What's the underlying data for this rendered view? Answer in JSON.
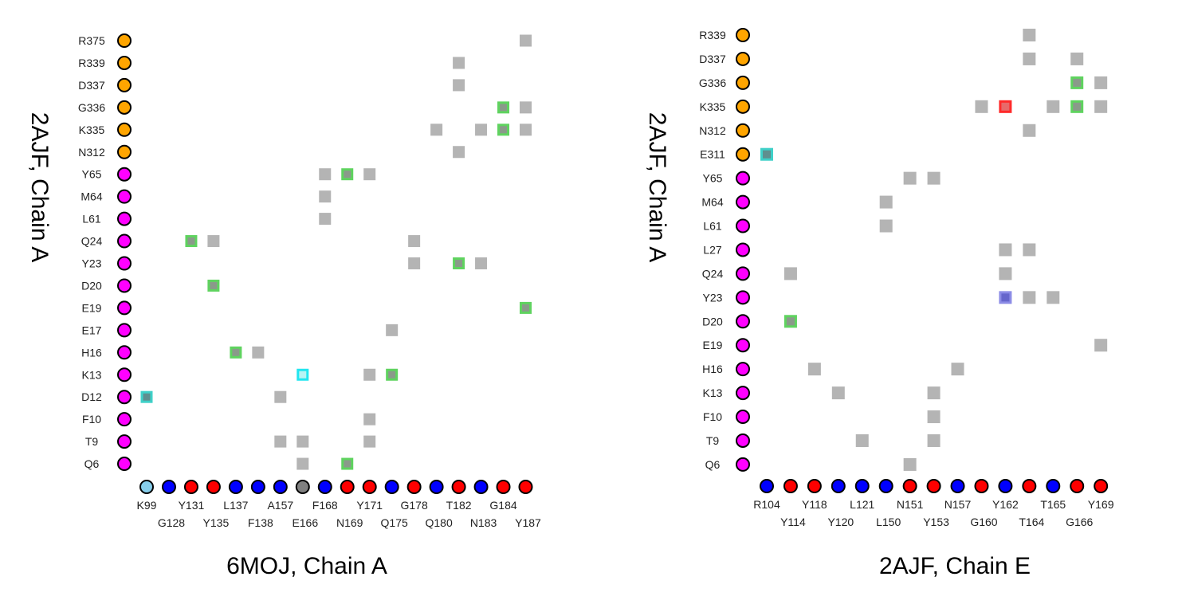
{
  "chart_data": [
    {
      "type": "heatmap",
      "title": "6MOJ, Chain A",
      "ylabel": "2AJF, Chain A",
      "x_residues": [
        {
          "label": "K99",
          "color": "#87ceeb"
        },
        {
          "label": "G128",
          "color": "#0000ff"
        },
        {
          "label": "Y131",
          "color": "#ff0000"
        },
        {
          "label": "Y135",
          "color": "#ff0000"
        },
        {
          "label": "L137",
          "color": "#0000ff"
        },
        {
          "label": "F138",
          "color": "#0000ff"
        },
        {
          "label": "A157",
          "color": "#0000ff"
        },
        {
          "label": "E166",
          "color": "#808080"
        },
        {
          "label": "F168",
          "color": "#0000ff"
        },
        {
          "label": "N169",
          "color": "#ff0000"
        },
        {
          "label": "Y171",
          "color": "#ff0000"
        },
        {
          "label": "Q175",
          "color": "#0000ff"
        },
        {
          "label": "G178",
          "color": "#ff0000"
        },
        {
          "label": "Q180",
          "color": "#0000ff"
        },
        {
          "label": "T182",
          "color": "#ff0000"
        },
        {
          "label": "N183",
          "color": "#0000ff"
        },
        {
          "label": "G184",
          "color": "#ff0000"
        },
        {
          "label": "Y187",
          "color": "#ff0000"
        }
      ],
      "y_residues": [
        {
          "label": "R375",
          "color": "#ffa500"
        },
        {
          "label": "R339",
          "color": "#ffa500"
        },
        {
          "label": "D337",
          "color": "#ffa500"
        },
        {
          "label": "G336",
          "color": "#ffa500"
        },
        {
          "label": "K335",
          "color": "#ffa500"
        },
        {
          "label": "N312",
          "color": "#ffa500"
        },
        {
          "label": "Y65",
          "color": "#ff00ff"
        },
        {
          "label": "M64",
          "color": "#ff00ff"
        },
        {
          "label": "L61",
          "color": "#ff00ff"
        },
        {
          "label": "Q24",
          "color": "#ff00ff"
        },
        {
          "label": "Y23",
          "color": "#ff00ff"
        },
        {
          "label": "D20",
          "color": "#ff00ff"
        },
        {
          "label": "E19",
          "color": "#ff00ff"
        },
        {
          "label": "E17",
          "color": "#ff00ff"
        },
        {
          "label": "H16",
          "color": "#ff00ff"
        },
        {
          "label": "K13",
          "color": "#ff00ff"
        },
        {
          "label": "D12",
          "color": "#ff00ff"
        },
        {
          "label": "F10",
          "color": "#ff00ff"
        },
        {
          "label": "T9",
          "color": "#ff00ff"
        },
        {
          "label": "Q6",
          "color": "#ff00ff"
        }
      ],
      "cells": [
        {
          "x": "Y187",
          "y": "R375",
          "type": "gray"
        },
        {
          "x": "T182",
          "y": "R339",
          "type": "gray"
        },
        {
          "x": "T182",
          "y": "D337",
          "type": "gray"
        },
        {
          "x": "G184",
          "y": "G336",
          "type": "green"
        },
        {
          "x": "Y187",
          "y": "G336",
          "type": "gray"
        },
        {
          "x": "Q180",
          "y": "K335",
          "type": "gray"
        },
        {
          "x": "N183",
          "y": "K335",
          "type": "gray"
        },
        {
          "x": "G184",
          "y": "K335",
          "type": "green"
        },
        {
          "x": "Y187",
          "y": "K335",
          "type": "gray"
        },
        {
          "x": "T182",
          "y": "N312",
          "type": "gray"
        },
        {
          "x": "F168",
          "y": "Y65",
          "type": "gray"
        },
        {
          "x": "N169",
          "y": "Y65",
          "type": "green"
        },
        {
          "x": "Y171",
          "y": "Y65",
          "type": "gray"
        },
        {
          "x": "F168",
          "y": "M64",
          "type": "gray"
        },
        {
          "x": "F168",
          "y": "L61",
          "type": "gray"
        },
        {
          "x": "Y131",
          "y": "Q24",
          "type": "green"
        },
        {
          "x": "Y135",
          "y": "Q24",
          "type": "gray"
        },
        {
          "x": "G178",
          "y": "Q24",
          "type": "gray"
        },
        {
          "x": "G178",
          "y": "Y23",
          "type": "gray"
        },
        {
          "x": "T182",
          "y": "Y23",
          "type": "green"
        },
        {
          "x": "N183",
          "y": "Y23",
          "type": "gray"
        },
        {
          "x": "Y135",
          "y": "D20",
          "type": "green"
        },
        {
          "x": "Y187",
          "y": "E19",
          "type": "green"
        },
        {
          "x": "Q175",
          "y": "E17",
          "type": "gray"
        },
        {
          "x": "L137",
          "y": "H16",
          "type": "green"
        },
        {
          "x": "F138",
          "y": "H16",
          "type": "gray"
        },
        {
          "x": "E166",
          "y": "K13",
          "type": "cyan"
        },
        {
          "x": "Y171",
          "y": "K13",
          "type": "gray"
        },
        {
          "x": "Q175",
          "y": "K13",
          "type": "green"
        },
        {
          "x": "K99",
          "y": "D12",
          "type": "teal"
        },
        {
          "x": "A157",
          "y": "D12",
          "type": "gray"
        },
        {
          "x": "Y171",
          "y": "F10",
          "type": "gray"
        },
        {
          "x": "A157",
          "y": "T9",
          "type": "gray"
        },
        {
          "x": "E166",
          "y": "T9",
          "type": "gray"
        },
        {
          "x": "Y171",
          "y": "T9",
          "type": "gray"
        },
        {
          "x": "E166",
          "y": "Q6",
          "type": "gray"
        },
        {
          "x": "N169",
          "y": "Q6",
          "type": "green"
        }
      ]
    },
    {
      "type": "heatmap",
      "title": "2AJF, Chain E",
      "ylabel": "2AJF, Chain A",
      "x_residues": [
        {
          "label": "R104",
          "color": "#0000ff"
        },
        {
          "label": "Y114",
          "color": "#ff0000"
        },
        {
          "label": "Y118",
          "color": "#ff0000"
        },
        {
          "label": "Y120",
          "color": "#0000ff"
        },
        {
          "label": "L121",
          "color": "#0000ff"
        },
        {
          "label": "L150",
          "color": "#0000ff"
        },
        {
          "label": "N151",
          "color": "#ff0000"
        },
        {
          "label": "Y153",
          "color": "#ff0000"
        },
        {
          "label": "N157",
          "color": "#0000ff"
        },
        {
          "label": "G160",
          "color": "#ff0000"
        },
        {
          "label": "Y162",
          "color": "#0000ff"
        },
        {
          "label": "T164",
          "color": "#ff0000"
        },
        {
          "label": "T165",
          "color": "#0000ff"
        },
        {
          "label": "G166",
          "color": "#ff0000"
        },
        {
          "label": "Y169",
          "color": "#ff0000"
        }
      ],
      "y_residues": [
        {
          "label": "R339",
          "color": "#ffa500"
        },
        {
          "label": "D337",
          "color": "#ffa500"
        },
        {
          "label": "G336",
          "color": "#ffa500"
        },
        {
          "label": "K335",
          "color": "#ffa500"
        },
        {
          "label": "N312",
          "color": "#ffa500"
        },
        {
          "label": "E311",
          "color": "#ffa500"
        },
        {
          "label": "Y65",
          "color": "#ff00ff"
        },
        {
          "label": "M64",
          "color": "#ff00ff"
        },
        {
          "label": "L61",
          "color": "#ff00ff"
        },
        {
          "label": "L27",
          "color": "#ff00ff"
        },
        {
          "label": "Q24",
          "color": "#ff00ff"
        },
        {
          "label": "Y23",
          "color": "#ff00ff"
        },
        {
          "label": "D20",
          "color": "#ff00ff"
        },
        {
          "label": "E19",
          "color": "#ff00ff"
        },
        {
          "label": "H16",
          "color": "#ff00ff"
        },
        {
          "label": "K13",
          "color": "#ff00ff"
        },
        {
          "label": "F10",
          "color": "#ff00ff"
        },
        {
          "label": "T9",
          "color": "#ff00ff"
        },
        {
          "label": "Q6",
          "color": "#ff00ff"
        }
      ],
      "cells": [
        {
          "x": "T164",
          "y": "R339",
          "type": "gray"
        },
        {
          "x": "T164",
          "y": "D337",
          "type": "gray"
        },
        {
          "x": "G166",
          "y": "D337",
          "type": "gray"
        },
        {
          "x": "G166",
          "y": "G336",
          "type": "green"
        },
        {
          "x": "Y169",
          "y": "G336",
          "type": "gray"
        },
        {
          "x": "G160",
          "y": "K335",
          "type": "gray"
        },
        {
          "x": "Y162",
          "y": "K335",
          "type": "red"
        },
        {
          "x": "T165",
          "y": "K335",
          "type": "gray"
        },
        {
          "x": "G166",
          "y": "K335",
          "type": "green"
        },
        {
          "x": "Y169",
          "y": "K335",
          "type": "gray"
        },
        {
          "x": "T164",
          "y": "N312",
          "type": "gray"
        },
        {
          "x": "R104",
          "y": "E311",
          "type": "teal"
        },
        {
          "x": "N151",
          "y": "Y65",
          "type": "gray"
        },
        {
          "x": "Y153",
          "y": "Y65",
          "type": "gray"
        },
        {
          "x": "L150",
          "y": "M64",
          "type": "gray"
        },
        {
          "x": "L150",
          "y": "L61",
          "type": "gray"
        },
        {
          "x": "Y162",
          "y": "L27",
          "type": "gray"
        },
        {
          "x": "T164",
          "y": "L27",
          "type": "gray"
        },
        {
          "x": "Y114",
          "y": "Q24",
          "type": "gray"
        },
        {
          "x": "Y162",
          "y": "Q24",
          "type": "gray"
        },
        {
          "x": "Y162",
          "y": "Y23",
          "type": "blue"
        },
        {
          "x": "T164",
          "y": "Y23",
          "type": "gray"
        },
        {
          "x": "T165",
          "y": "Y23",
          "type": "gray"
        },
        {
          "x": "Y114",
          "y": "D20",
          "type": "green"
        },
        {
          "x": "Y169",
          "y": "E19",
          "type": "gray"
        },
        {
          "x": "Y118",
          "y": "H16",
          "type": "gray"
        },
        {
          "x": "N157",
          "y": "H16",
          "type": "gray"
        },
        {
          "x": "Y120",
          "y": "K13",
          "type": "gray"
        },
        {
          "x": "Y153",
          "y": "K13",
          "type": "gray"
        },
        {
          "x": "Y153",
          "y": "F10",
          "type": "gray"
        },
        {
          "x": "L121",
          "y": "T9",
          "type": "gray"
        },
        {
          "x": "Y153",
          "y": "T9",
          "type": "gray"
        },
        {
          "x": "N151",
          "y": "Q6",
          "type": "gray"
        }
      ]
    }
  ],
  "cell_colors": {
    "gray": {
      "fill": "#b4b4b4",
      "stroke": "#b4b4b4"
    },
    "green": {
      "fill": "#8a9a8a",
      "stroke": "#5fd35f"
    },
    "teal": {
      "fill": "#5f8f8f",
      "stroke": "#3fd0c8"
    },
    "cyan": {
      "fill": "#b8f4f4",
      "stroke": "#22e6f0"
    },
    "red": {
      "fill": "#e86a6a",
      "stroke": "#ff2a2a"
    },
    "blue": {
      "fill": "#6666cc",
      "stroke": "#8c8ce6"
    }
  }
}
